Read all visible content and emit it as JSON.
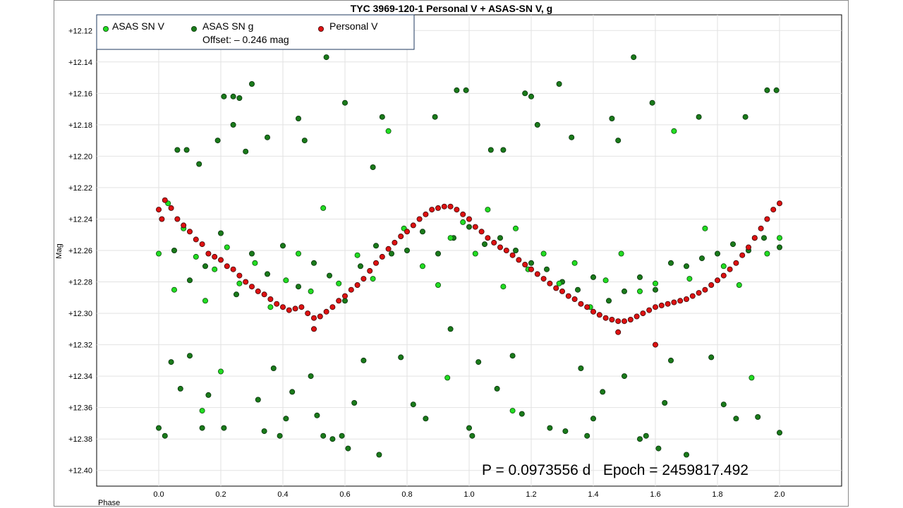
{
  "chart_data": {
    "type": "scatter",
    "title": "TYC 3969-120-1 Personal V + ASAS-SN V, g",
    "xlabel": "Phase",
    "ylabel": "Mag",
    "xlim": [
      -0.2,
      2.2
    ],
    "ylim": [
      12.11,
      12.41
    ],
    "y_inverted": true,
    "x_ticks": [
      "0.0",
      "0.2",
      "0.4",
      "0.6",
      "0.8",
      "1.0",
      "1.2",
      "1.4",
      "1.6",
      "1.8",
      "2.0"
    ],
    "y_ticks": [
      "+12.12",
      "+12.14",
      "+12.16",
      "+12.18",
      "+12.20",
      "+12.22",
      "+12.24",
      "+12.26",
      "+12.28",
      "+12.30",
      "+12.32",
      "+12.34",
      "+12.36",
      "+12.38",
      "+12.40"
    ],
    "grid": true,
    "legend_position": "top-left",
    "annotation": "P = 0.0973556 d   Epoch = 2459817.492",
    "series": [
      {
        "name": "ASAS SN V",
        "note": "",
        "color": "#22dd22",
        "points": [
          [
            0.0,
            12.262
          ],
          [
            0.03,
            12.23
          ],
          [
            0.05,
            12.285
          ],
          [
            0.08,
            12.246
          ],
          [
            0.12,
            12.264
          ],
          [
            0.15,
            12.292
          ],
          [
            0.18,
            12.272
          ],
          [
            0.22,
            12.258
          ],
          [
            0.26,
            12.281
          ],
          [
            0.31,
            12.268
          ],
          [
            0.36,
            12.296
          ],
          [
            0.41,
            12.279
          ],
          [
            0.45,
            12.262
          ],
          [
            0.49,
            12.286
          ],
          [
            0.53,
            12.233
          ],
          [
            0.58,
            12.281
          ],
          [
            0.64,
            12.263
          ],
          [
            0.69,
            12.278
          ],
          [
            0.74,
            12.184
          ],
          [
            0.79,
            12.246
          ],
          [
            0.85,
            12.27
          ],
          [
            0.9,
            12.282
          ],
          [
            0.94,
            12.252
          ],
          [
            0.98,
            12.242
          ],
          [
            1.02,
            12.262
          ],
          [
            1.06,
            12.234
          ],
          [
            1.11,
            12.283
          ],
          [
            1.15,
            12.246
          ],
          [
            1.19,
            12.272
          ],
          [
            1.24,
            12.262
          ],
          [
            1.29,
            12.281
          ],
          [
            1.34,
            12.268
          ],
          [
            1.39,
            12.296
          ],
          [
            1.44,
            12.279
          ],
          [
            1.49,
            12.262
          ],
          [
            1.55,
            12.286
          ],
          [
            1.6,
            12.281
          ],
          [
            1.66,
            12.184
          ],
          [
            1.71,
            12.278
          ],
          [
            1.76,
            12.246
          ],
          [
            1.82,
            12.27
          ],
          [
            1.87,
            12.282
          ],
          [
            1.92,
            12.252
          ],
          [
            1.96,
            12.262
          ],
          [
            2.0,
            12.252
          ],
          [
            0.14,
            12.362
          ],
          [
            0.2,
            12.337
          ],
          [
            0.93,
            12.341
          ],
          [
            1.14,
            12.362
          ],
          [
            1.91,
            12.341
          ]
        ]
      },
      {
        "name": "ASAS SN g",
        "note": "Offset: – 0.246 mag",
        "color": "#1a7a1a",
        "points": [
          [
            0.0,
            12.373
          ],
          [
            0.02,
            12.378
          ],
          [
            0.04,
            12.331
          ],
          [
            0.06,
            12.196
          ],
          [
            0.07,
            12.348
          ],
          [
            0.09,
            12.196
          ],
          [
            0.1,
            12.327
          ],
          [
            0.13,
            12.205
          ],
          [
            0.14,
            12.373
          ],
          [
            0.16,
            12.352
          ],
          [
            0.19,
            12.19
          ],
          [
            0.21,
            12.373
          ],
          [
            0.21,
            12.162
          ],
          [
            0.24,
            12.18
          ],
          [
            0.24,
            12.162
          ],
          [
            0.26,
            12.163
          ],
          [
            0.28,
            12.197
          ],
          [
            0.3,
            12.154
          ],
          [
            0.32,
            12.355
          ],
          [
            0.34,
            12.375
          ],
          [
            0.35,
            12.188
          ],
          [
            0.37,
            12.335
          ],
          [
            0.39,
            12.378
          ],
          [
            0.41,
            12.367
          ],
          [
            0.43,
            12.35
          ],
          [
            0.45,
            12.176
          ],
          [
            0.47,
            12.19
          ],
          [
            0.49,
            12.34
          ],
          [
            0.51,
            12.365
          ],
          [
            0.53,
            12.378
          ],
          [
            0.54,
            12.137
          ],
          [
            0.56,
            12.38
          ],
          [
            0.59,
            12.378
          ],
          [
            0.6,
            12.166
          ],
          [
            0.61,
            12.386
          ],
          [
            0.63,
            12.357
          ],
          [
            0.66,
            12.33
          ],
          [
            0.69,
            12.207
          ],
          [
            0.71,
            12.39
          ],
          [
            0.72,
            12.175
          ],
          [
            0.78,
            12.328
          ],
          [
            0.82,
            12.358
          ],
          [
            0.86,
            12.367
          ],
          [
            0.89,
            12.175
          ],
          [
            0.94,
            12.31
          ],
          [
            0.96,
            12.158
          ],
          [
            0.99,
            12.158
          ],
          [
            1.0,
            12.373
          ],
          [
            1.01,
            12.378
          ],
          [
            1.03,
            12.331
          ],
          [
            1.07,
            12.196
          ],
          [
            1.09,
            12.348
          ],
          [
            1.11,
            12.196
          ],
          [
            1.14,
            12.327
          ],
          [
            1.17,
            12.364
          ],
          [
            1.18,
            12.16
          ],
          [
            1.2,
            12.162
          ],
          [
            1.22,
            12.18
          ],
          [
            1.26,
            12.373
          ],
          [
            1.29,
            12.154
          ],
          [
            1.31,
            12.375
          ],
          [
            1.33,
            12.188
          ],
          [
            1.36,
            12.335
          ],
          [
            1.38,
            12.378
          ],
          [
            1.4,
            12.367
          ],
          [
            1.43,
            12.35
          ],
          [
            1.46,
            12.176
          ],
          [
            1.48,
            12.19
          ],
          [
            1.5,
            12.34
          ],
          [
            1.53,
            12.137
          ],
          [
            1.55,
            12.38
          ],
          [
            1.57,
            12.378
          ],
          [
            1.59,
            12.166
          ],
          [
            1.61,
            12.386
          ],
          [
            1.63,
            12.357
          ],
          [
            1.65,
            12.33
          ],
          [
            1.7,
            12.39
          ],
          [
            1.74,
            12.175
          ],
          [
            1.78,
            12.328
          ],
          [
            1.82,
            12.358
          ],
          [
            1.86,
            12.367
          ],
          [
            1.89,
            12.175
          ],
          [
            1.93,
            12.366
          ],
          [
            1.96,
            12.158
          ],
          [
            1.99,
            12.158
          ],
          [
            2.0,
            12.376
          ],
          [
            0.05,
            12.26
          ],
          [
            0.1,
            12.279
          ],
          [
            0.15,
            12.27
          ],
          [
            0.2,
            12.249
          ],
          [
            0.25,
            12.288
          ],
          [
            0.3,
            12.262
          ],
          [
            0.35,
            12.275
          ],
          [
            0.4,
            12.257
          ],
          [
            0.45,
            12.283
          ],
          [
            0.5,
            12.268
          ],
          [
            0.55,
            12.276
          ],
          [
            0.6,
            12.292
          ],
          [
            0.65,
            12.27
          ],
          [
            0.7,
            12.257
          ],
          [
            0.75,
            12.262
          ],
          [
            0.8,
            12.26
          ],
          [
            0.85,
            12.248
          ],
          [
            0.9,
            12.262
          ],
          [
            0.95,
            12.252
          ],
          [
            1.0,
            12.245
          ],
          [
            1.05,
            12.256
          ],
          [
            1.1,
            12.252
          ],
          [
            1.15,
            12.26
          ],
          [
            1.2,
            12.268
          ],
          [
            1.25,
            12.272
          ],
          [
            1.3,
            12.28
          ],
          [
            1.35,
            12.285
          ],
          [
            1.4,
            12.277
          ],
          [
            1.45,
            12.292
          ],
          [
            1.5,
            12.286
          ],
          [
            1.55,
            12.277
          ],
          [
            1.6,
            12.285
          ],
          [
            1.65,
            12.268
          ],
          [
            1.7,
            12.27
          ],
          [
            1.75,
            12.265
          ],
          [
            1.8,
            12.262
          ],
          [
            1.85,
            12.256
          ],
          [
            1.9,
            12.26
          ],
          [
            1.95,
            12.252
          ],
          [
            2.0,
            12.258
          ]
        ]
      },
      {
        "name": "Personal V",
        "note": "",
        "color": "#dd1111",
        "points": [
          [
            0.0,
            12.234
          ],
          [
            0.01,
            12.24
          ],
          [
            0.02,
            12.228
          ],
          [
            0.04,
            12.233
          ],
          [
            0.06,
            12.24
          ],
          [
            0.08,
            12.244
          ],
          [
            0.1,
            12.248
          ],
          [
            0.12,
            12.253
          ],
          [
            0.14,
            12.256
          ],
          [
            0.16,
            12.262
          ],
          [
            0.18,
            12.264
          ],
          [
            0.2,
            12.266
          ],
          [
            0.22,
            12.27
          ],
          [
            0.24,
            12.272
          ],
          [
            0.26,
            12.276
          ],
          [
            0.28,
            12.28
          ],
          [
            0.3,
            12.283
          ],
          [
            0.32,
            12.286
          ],
          [
            0.34,
            12.288
          ],
          [
            0.36,
            12.291
          ],
          [
            0.38,
            12.294
          ],
          [
            0.4,
            12.296
          ],
          [
            0.42,
            12.298
          ],
          [
            0.44,
            12.297
          ],
          [
            0.46,
            12.296
          ],
          [
            0.48,
            12.3
          ],
          [
            0.5,
            12.303
          ],
          [
            0.52,
            12.302
          ],
          [
            0.54,
            12.299
          ],
          [
            0.56,
            12.296
          ],
          [
            0.58,
            12.292
          ],
          [
            0.6,
            12.289
          ],
          [
            0.62,
            12.285
          ],
          [
            0.64,
            12.282
          ],
          [
            0.66,
            12.278
          ],
          [
            0.68,
            12.273
          ],
          [
            0.7,
            12.268
          ],
          [
            0.72,
            12.264
          ],
          [
            0.74,
            12.259
          ],
          [
            0.76,
            12.255
          ],
          [
            0.78,
            12.251
          ],
          [
            0.8,
            12.248
          ],
          [
            0.82,
            12.244
          ],
          [
            0.84,
            12.24
          ],
          [
            0.86,
            12.237
          ],
          [
            0.88,
            12.234
          ],
          [
            0.9,
            12.233
          ],
          [
            0.92,
            12.232
          ],
          [
            0.94,
            12.232
          ],
          [
            0.96,
            12.234
          ],
          [
            0.98,
            12.237
          ],
          [
            1.0,
            12.24
          ],
          [
            1.02,
            12.245
          ],
          [
            1.04,
            12.248
          ],
          [
            1.06,
            12.252
          ],
          [
            1.08,
            12.255
          ],
          [
            1.1,
            12.258
          ],
          [
            1.12,
            12.26
          ],
          [
            1.14,
            12.263
          ],
          [
            1.16,
            12.266
          ],
          [
            1.18,
            12.269
          ],
          [
            1.2,
            12.272
          ],
          [
            1.22,
            12.275
          ],
          [
            1.24,
            12.278
          ],
          [
            1.26,
            12.281
          ],
          [
            1.28,
            12.284
          ],
          [
            1.3,
            12.286
          ],
          [
            1.32,
            12.289
          ],
          [
            1.34,
            12.291
          ],
          [
            1.36,
            12.294
          ],
          [
            1.38,
            12.296
          ],
          [
            1.4,
            12.299
          ],
          [
            1.42,
            12.301
          ],
          [
            1.44,
            12.303
          ],
          [
            1.46,
            12.304
          ],
          [
            1.48,
            12.305
          ],
          [
            1.5,
            12.305
          ],
          [
            1.52,
            12.304
          ],
          [
            1.54,
            12.302
          ],
          [
            1.56,
            12.3
          ],
          [
            1.58,
            12.298
          ],
          [
            1.6,
            12.296
          ],
          [
            1.62,
            12.295
          ],
          [
            1.64,
            12.294
          ],
          [
            1.66,
            12.293
          ],
          [
            1.68,
            12.292
          ],
          [
            1.7,
            12.291
          ],
          [
            1.72,
            12.289
          ],
          [
            1.74,
            12.287
          ],
          [
            1.76,
            12.285
          ],
          [
            1.78,
            12.282
          ],
          [
            1.8,
            12.279
          ],
          [
            1.82,
            12.276
          ],
          [
            1.84,
            12.272
          ],
          [
            1.86,
            12.268
          ],
          [
            1.88,
            12.263
          ],
          [
            1.9,
            12.258
          ],
          [
            1.92,
            12.252
          ],
          [
            1.94,
            12.246
          ],
          [
            1.96,
            12.24
          ],
          [
            1.98,
            12.234
          ],
          [
            2.0,
            12.23
          ],
          [
            1.6,
            12.32
          ],
          [
            0.5,
            12.31
          ],
          [
            1.48,
            12.312
          ]
        ]
      }
    ]
  }
}
